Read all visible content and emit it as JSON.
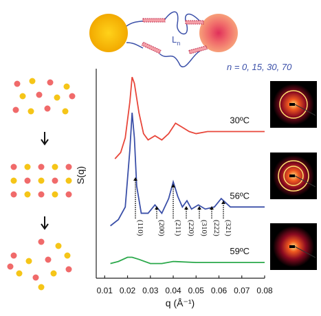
{
  "chart_data": {
    "type": "line",
    "x_label": "q (Å⁻¹)",
    "y_label": "S(q)",
    "xlim": [
      0.0063,
      0.08
    ],
    "xticks": [
      0.01,
      0.02,
      0.03,
      0.04,
      0.05,
      0.06,
      0.07,
      0.08
    ],
    "ylim": [
      0,
      10
    ],
    "series": [
      {
        "name": "30ºC",
        "color": "#e8463a",
        "x": [
          0.0145,
          0.017,
          0.019,
          0.021,
          0.022,
          0.023,
          0.025,
          0.027,
          0.029,
          0.032,
          0.035,
          0.038,
          0.041,
          0.044,
          0.047,
          0.05,
          0.055,
          0.06,
          0.07,
          0.08
        ],
        "values": [
          5.7,
          6.0,
          6.7,
          8.4,
          9.6,
          9.3,
          7.9,
          6.9,
          6.6,
          6.8,
          6.6,
          6.9,
          7.4,
          7.2,
          7.0,
          6.9,
          7.0,
          7.0,
          7.0,
          7.0
        ]
      },
      {
        "name": "56ºC",
        "color": "#3a4fa8",
        "x": [
          0.0125,
          0.016,
          0.019,
          0.021,
          0.022,
          0.023,
          0.024,
          0.026,
          0.029,
          0.032,
          0.035,
          0.038,
          0.04,
          0.042,
          0.044,
          0.046,
          0.048,
          0.051,
          0.054,
          0.058,
          0.061,
          0.065,
          0.07,
          0.08
        ],
        "values": [
          2.5,
          2.8,
          3.4,
          6.1,
          7.9,
          6.7,
          4.4,
          3.1,
          3.1,
          3.5,
          3.1,
          3.8,
          4.6,
          3.9,
          3.4,
          3.7,
          3.3,
          3.5,
          3.3,
          3.4,
          3.8,
          3.4,
          3.4,
          3.4
        ]
      },
      {
        "name": "59ºC",
        "color": "#2aa84a",
        "x": [
          0.0125,
          0.016,
          0.02,
          0.022,
          0.025,
          0.03,
          0.035,
          0.04,
          0.05,
          0.06,
          0.07,
          0.08
        ],
        "values": [
          0.7,
          0.8,
          1.0,
          1.0,
          0.9,
          0.7,
          0.7,
          0.8,
          0.75,
          0.75,
          0.75,
          0.75
        ]
      }
    ],
    "peak_labels": [
      "(110)",
      "(200)",
      "(211)",
      "(220)",
      "(310)",
      "(222)",
      "(321)"
    ],
    "linker_label": "L",
    "linker_subscript": "n",
    "note": "n = 0, 15, 30, 70"
  }
}
